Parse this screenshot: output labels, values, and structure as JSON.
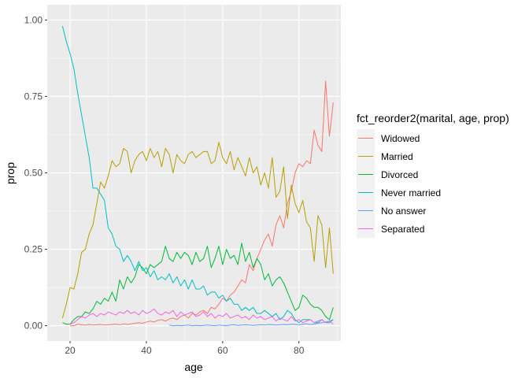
{
  "chart_data": {
    "type": "line",
    "xlabel": "age",
    "ylabel": "prop",
    "xlim": [
      14,
      91
    ],
    "ylim": [
      -0.05,
      1.05
    ],
    "x_ticks": [
      20,
      40,
      60,
      80
    ],
    "x_tick_labels": [
      "20",
      "40",
      "60",
      "80"
    ],
    "y_ticks": [
      0,
      0.25,
      0.5,
      0.75,
      1.0
    ],
    "y_tick_labels": [
      "0.00",
      "0.25",
      "0.50",
      "0.75",
      "1.00"
    ],
    "grid": true,
    "legend": {
      "title": "fct_reorder2(marital, age, prop)",
      "position": "right"
    },
    "x": [
      18,
      19,
      20,
      21,
      22,
      23,
      24,
      25,
      26,
      27,
      28,
      29,
      30,
      31,
      32,
      33,
      34,
      35,
      36,
      37,
      38,
      39,
      40,
      41,
      42,
      43,
      44,
      45,
      46,
      47,
      48,
      49,
      50,
      51,
      52,
      53,
      54,
      55,
      56,
      57,
      58,
      59,
      60,
      61,
      62,
      63,
      64,
      65,
      66,
      67,
      68,
      69,
      70,
      71,
      72,
      73,
      74,
      75,
      76,
      77,
      78,
      79,
      80,
      81,
      82,
      83,
      84,
      85,
      86,
      87,
      88,
      89
    ],
    "series": [
      {
        "name": "Widowed",
        "color": "#F8766D",
        "values": [
          null,
          null,
          0.0,
          0.0,
          0.005,
          0.003,
          0.002,
          0.004,
          0.002,
          0.003,
          0.004,
          0.002,
          0.003,
          0.004,
          0.005,
          0.003,
          0.006,
          0.004,
          0.006,
          0.008,
          0.01,
          0.008,
          0.012,
          0.015,
          0.012,
          0.018,
          0.02,
          0.015,
          0.022,
          0.025,
          0.02,
          0.03,
          0.035,
          0.025,
          0.04,
          0.035,
          0.045,
          0.05,
          0.04,
          0.06,
          0.055,
          0.07,
          0.09,
          0.08,
          0.1,
          0.11,
          0.13,
          0.15,
          0.14,
          0.2,
          0.18,
          0.22,
          0.25,
          0.28,
          0.3,
          0.26,
          0.33,
          0.36,
          0.32,
          0.4,
          0.44,
          0.5,
          0.53,
          0.52,
          0.54,
          0.53,
          0.64,
          0.59,
          0.57,
          0.8,
          0.62,
          0.73
        ]
      },
      {
        "name": "Married",
        "color": "#B79F00",
        "values": [
          0.025,
          0.07,
          0.125,
          0.12,
          0.17,
          0.24,
          0.25,
          0.3,
          0.33,
          0.4,
          0.47,
          0.45,
          0.49,
          0.54,
          0.52,
          0.53,
          0.58,
          0.57,
          0.5,
          0.54,
          0.56,
          0.57,
          0.54,
          0.58,
          0.55,
          0.57,
          0.52,
          0.58,
          0.56,
          0.5,
          0.56,
          0.54,
          0.53,
          0.56,
          0.57,
          0.55,
          0.56,
          0.57,
          0.57,
          0.53,
          0.54,
          0.6,
          0.55,
          0.53,
          0.57,
          0.51,
          0.55,
          0.52,
          0.49,
          0.55,
          0.5,
          0.52,
          0.46,
          0.5,
          0.45,
          0.55,
          0.42,
          0.44,
          0.52,
          0.35,
          0.46,
          0.4,
          0.37,
          0.41,
          0.34,
          0.32,
          0.21,
          0.36,
          0.33,
          0.19,
          0.32,
          0.17
        ]
      },
      {
        "name": "Divorced",
        "color": "#00BA38",
        "values": [
          0.01,
          0.005,
          0.005,
          0.02,
          0.03,
          0.03,
          0.045,
          0.04,
          0.055,
          0.08,
          0.07,
          0.09,
          0.08,
          0.11,
          0.08,
          0.15,
          0.12,
          0.16,
          0.14,
          0.16,
          0.2,
          0.19,
          0.17,
          0.2,
          0.19,
          0.2,
          0.21,
          0.26,
          0.22,
          0.21,
          0.24,
          0.22,
          0.24,
          0.23,
          0.2,
          0.24,
          0.21,
          0.22,
          0.26,
          0.19,
          0.22,
          0.26,
          0.2,
          0.25,
          0.22,
          0.23,
          0.2,
          0.27,
          0.21,
          0.24,
          0.19,
          0.22,
          0.2,
          0.15,
          0.17,
          0.13,
          0.15,
          0.16,
          0.14,
          0.11,
          0.08,
          0.05,
          0.06,
          0.1,
          0.09,
          0.07,
          0.06,
          0.06,
          0.05,
          0.03,
          0.02,
          0.06
        ]
      },
      {
        "name": "Never married",
        "color": "#00BFC4",
        "values": [
          0.98,
          0.93,
          0.89,
          0.84,
          0.76,
          0.69,
          0.62,
          0.55,
          0.45,
          0.45,
          0.43,
          0.41,
          0.32,
          0.3,
          0.26,
          0.25,
          0.21,
          0.23,
          0.21,
          0.18,
          0.21,
          0.18,
          0.19,
          0.16,
          0.18,
          0.15,
          0.16,
          0.15,
          0.17,
          0.14,
          0.16,
          0.13,
          0.15,
          0.12,
          0.15,
          0.12,
          0.12,
          0.13,
          0.1,
          0.11,
          0.11,
          0.09,
          0.1,
          0.08,
          0.09,
          0.07,
          0.07,
          0.05,
          0.06,
          0.05,
          0.06,
          0.04,
          0.04,
          0.05,
          0.04,
          0.03,
          0.04,
          0.02,
          0.03,
          0.05,
          0.04,
          0.02,
          0.01,
          0.02,
          0.02,
          0.02,
          0.01,
          0.01,
          0.02,
          0.01,
          0.01,
          0.02
        ]
      },
      {
        "name": "No answer",
        "color": "#619CFF",
        "values": [
          null,
          null,
          null,
          null,
          null,
          null,
          null,
          null,
          null,
          null,
          null,
          null,
          null,
          null,
          null,
          null,
          null,
          null,
          null,
          null,
          null,
          null,
          null,
          null,
          null,
          null,
          null,
          null,
          0.002,
          0.0,
          0.001,
          0.0,
          0.001,
          0.002,
          0.0,
          0.001,
          0.0,
          0.001,
          0.002,
          0.001,
          0.0,
          0.002,
          0.001,
          0.0,
          0.002,
          0.003,
          0.001,
          0.002,
          0.003,
          0.002,
          0.001,
          0.002,
          0.003,
          0.002,
          0.004,
          0.003,
          0.002,
          0.003,
          0.004,
          0.003,
          0.005,
          0.004,
          0.003,
          0.005,
          0.006,
          0.004,
          0.005,
          0.008,
          0.01,
          0.012,
          0.015,
          0.02
        ]
      },
      {
        "name": "Separated",
        "color": "#F564E3",
        "values": [
          null,
          null,
          0.005,
          0.01,
          0.02,
          0.03,
          0.025,
          0.035,
          0.04,
          0.03,
          0.04,
          0.035,
          0.045,
          0.04,
          0.035,
          0.045,
          0.04,
          0.05,
          0.04,
          0.045,
          0.035,
          0.05,
          0.04,
          0.045,
          0.055,
          0.04,
          0.035,
          0.045,
          0.04,
          0.05,
          0.03,
          0.045,
          0.035,
          0.04,
          0.045,
          0.03,
          0.035,
          0.045,
          0.03,
          0.04,
          0.025,
          0.035,
          0.03,
          0.04,
          0.025,
          0.03,
          0.035,
          0.025,
          0.03,
          0.02,
          0.035,
          0.025,
          0.03,
          0.02,
          0.025,
          0.03,
          0.015,
          0.025,
          0.02,
          0.015,
          0.03,
          0.015,
          0.02,
          0.01,
          0.015,
          0.02,
          0.01,
          0.015,
          0.02,
          0.01,
          0.015,
          0.005
        ]
      }
    ]
  }
}
